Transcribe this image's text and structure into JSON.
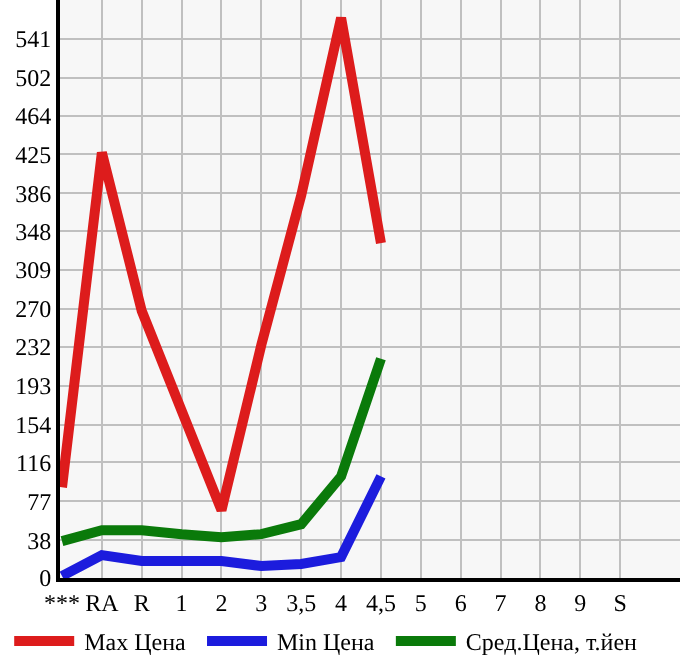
{
  "chart_data": {
    "type": "line",
    "categories": [
      "***",
      "RA",
      "R",
      "1",
      "2",
      "3",
      "3,5",
      "4",
      "4,5",
      "5",
      "6",
      "7",
      "8",
      "9",
      "S"
    ],
    "series": [
      {
        "name": "Max Цена",
        "color": "#dd1c1c",
        "values": [
          91,
          427,
          268,
          168,
          68,
          234,
          384,
          562,
          336,
          null,
          null,
          null,
          null,
          null,
          null
        ]
      },
      {
        "name": "Min Цена",
        "color": "#1c1cdd",
        "values": [
          2,
          23,
          17,
          17,
          17,
          12,
          14,
          21,
          102,
          null,
          null,
          null,
          null,
          null,
          null
        ]
      },
      {
        "name": "Сред.Цена, т.йен",
        "color": "#0a7a0a",
        "values": [
          37,
          48,
          48,
          44,
          41,
          44,
          54,
          102,
          220,
          null,
          null,
          null,
          null,
          null,
          null
        ]
      }
    ],
    "ylim": [
      0,
      580
    ],
    "yticks": [
      0,
      38,
      77,
      116,
      154,
      193,
      232,
      270,
      309,
      348,
      386,
      425,
      464,
      502,
      541
    ],
    "grid": true,
    "legend": "bottom",
    "marker": "none",
    "line_style": "solid"
  }
}
